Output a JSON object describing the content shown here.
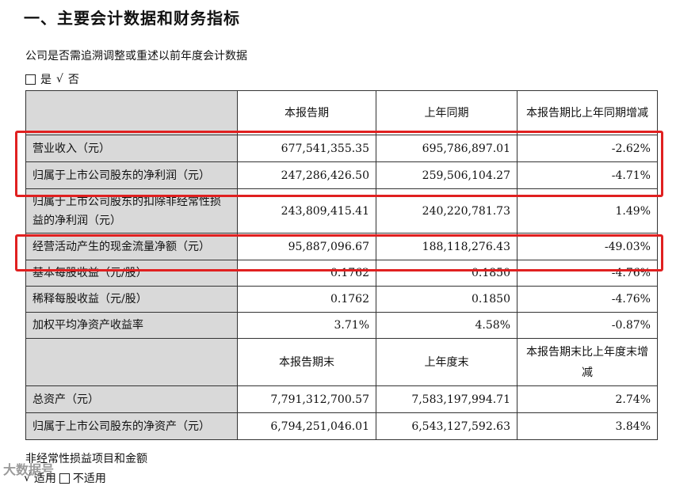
{
  "heading": "一、主要会计数据和财务指标",
  "subtitle": "公司是否需追溯调整或重述以前年度会计数据",
  "choice": {
    "yes_label": "是",
    "check_mark": "√",
    "no_label": "否"
  },
  "table1": {
    "headers": [
      "本报告期",
      "上年同期",
      "本报告期比上年同期增减"
    ],
    "rows": [
      {
        "label": "营业收入（元）",
        "current": "677,541,355.35",
        "prior": "695,786,897.01",
        "change": "-2.62%"
      },
      {
        "label": "归属于上市公司股东的净利润（元）",
        "current": "247,286,426.50",
        "prior": "259,506,104.27",
        "change": "-4.71%"
      },
      {
        "label": "归属于上市公司股东的扣除非经常性损益的净利润（元）",
        "current": "243,809,415.41",
        "prior": "240,220,781.73",
        "change": "1.49%"
      },
      {
        "label": "经营活动产生的现金流量净额（元）",
        "current": "95,887,096.67",
        "prior": "188,118,276.43",
        "change": "-49.03%"
      },
      {
        "label": "基本每股收益（元/股）",
        "current": "0.1762",
        "prior": "0.1850",
        "change": "-4.76%"
      },
      {
        "label": "稀释每股收益（元/股）",
        "current": "0.1762",
        "prior": "0.1850",
        "change": "-4.76%"
      },
      {
        "label": "加权平均净资产收益率",
        "current": "3.71%",
        "prior": "4.58%",
        "change": "-0.87%"
      }
    ]
  },
  "table2": {
    "headers": [
      "本报告期末",
      "上年度末",
      "本报告期末比上年度末增减"
    ],
    "rows": [
      {
        "label": "总资产（元）",
        "current": "7,791,312,700.57",
        "prior": "7,583,197,994.71",
        "change": "2.74%"
      },
      {
        "label": "归属于上市公司股东的净资产（元）",
        "current": "6,794,251,046.01",
        "prior": "6,543,127,592.63",
        "change": "3.84%"
      }
    ]
  },
  "footer": {
    "text": "非经常性损益项目和金额",
    "check_mark": "√",
    "applicable": "适用",
    "not_applicable": "不适用"
  },
  "watermark": "大数据号",
  "highlight_color": "#e02020"
}
